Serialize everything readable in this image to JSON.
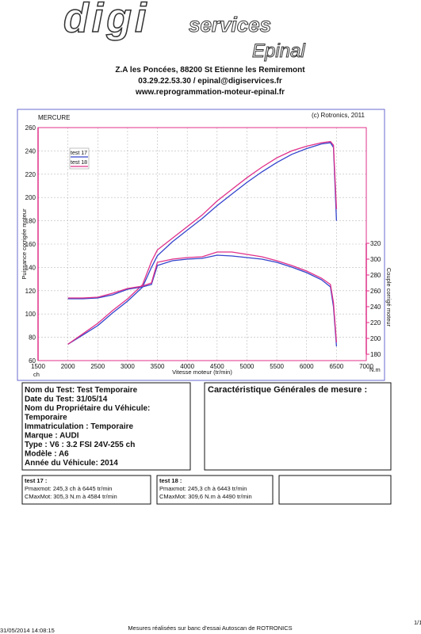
{
  "header": {
    "logo_main": "digi",
    "logo_sub": "services",
    "logo_city": "Epinal",
    "address": "Z.A les Poncées, 88200 St Etienne les Remiremont",
    "contact": "03.29.22.53.30 / epinal@digiservices.fr",
    "website": "www.reprogrammation-moteur-epinal.fr"
  },
  "chart_data": {
    "type": "line",
    "title": "MERCURE",
    "credit": "(c) Rotronics, 2011",
    "xlabel": "Vitesse moteur (tr/min)",
    "ylabel": "Puissance corrigée moteur",
    "y2label": "Couple corrigé moteur",
    "yunit": "ch",
    "y2unit": "N.m",
    "x": [
      2000,
      2250,
      2500,
      2750,
      3000,
      3250,
      3400,
      3500,
      3750,
      4000,
      4250,
      4500,
      4750,
      5000,
      5250,
      5500,
      5750,
      6000,
      6250,
      6400,
      6450,
      6500
    ],
    "xlim": [
      1500,
      7000
    ],
    "xticks": [
      1500,
      2000,
      2500,
      3000,
      3500,
      4000,
      4500,
      5000,
      5500,
      6000,
      6500,
      7000
    ],
    "ylim": [
      60,
      260
    ],
    "yticks": [
      60,
      80,
      100,
      120,
      140,
      160,
      180,
      200,
      220,
      240,
      260
    ],
    "y2lim": [
      172,
      466
    ],
    "y2ticks": [
      180,
      200,
      220,
      240,
      260,
      280,
      300,
      320
    ],
    "grid": true,
    "legend": "top-left",
    "series": [
      {
        "name": "test 17",
        "color": "#3344cc",
        "axis": "y",
        "values": [
          74,
          82,
          90,
          101,
          111,
          123,
          140,
          150,
          162,
          172,
          182,
          193,
          203,
          213,
          222,
          230,
          237,
          242,
          246,
          247,
          243,
          180
        ]
      },
      {
        "name": "test 18",
        "color": "#e0308a",
        "axis": "y",
        "values": [
          74,
          83,
          92,
          103,
          113,
          125,
          145,
          155,
          165,
          175,
          185,
          197,
          207,
          217,
          226,
          234,
          240,
          244,
          247,
          248,
          245,
          190
        ]
      },
      {
        "name": "test 17",
        "color": "#3344cc",
        "axis": "y2",
        "values": [
          250,
          250,
          251,
          255,
          262,
          265,
          268,
          292,
          298,
          300,
          301,
          305,
          304,
          302,
          300,
          296,
          290,
          283,
          274,
          265,
          240,
          190
        ]
      },
      {
        "name": "test 18",
        "color": "#e0308a",
        "axis": "y2",
        "values": [
          251,
          251,
          252,
          257,
          263,
          266,
          270,
          296,
          300,
          302,
          303,
          309,
          309,
          306,
          303,
          298,
          292,
          285,
          276,
          268,
          245,
          195
        ]
      }
    ]
  },
  "vehicle": {
    "lines": [
      "Nom du Test: Test Temporaire",
      "Date du Test: 31/05/14",
      "Nom du Propriétaire du Véhicule:",
      "Temporaire",
      "Immatriculation  : Temporaire",
      "Marque  : AUDI",
      "Type  : V6 : 3.2 FSI 24V-255 ch",
      "Modèle  : A6",
      "Année du Véhicule: 2014"
    ]
  },
  "characteristics": {
    "title": "Caractéristique Générales de mesure :"
  },
  "results": [
    {
      "title": "test 17 :",
      "power": "Pmaxmot: 245,3 ch à 6445 tr/min",
      "torque": "CMaxMot: 305,3 N.m à 4584 tr/min"
    },
    {
      "title": "test 18 :",
      "power": "Pmaxmot: 245,3 ch à 6443 tr/min",
      "torque": "CMaxMot: 309,6 N.m à 4490 tr/min"
    }
  ],
  "footer": {
    "datetime": "31/05/2014 14:08:15",
    "note": "Mesures réalisées sur banc d'essai Autoscan de ROTRONICS",
    "page": "1/1"
  }
}
